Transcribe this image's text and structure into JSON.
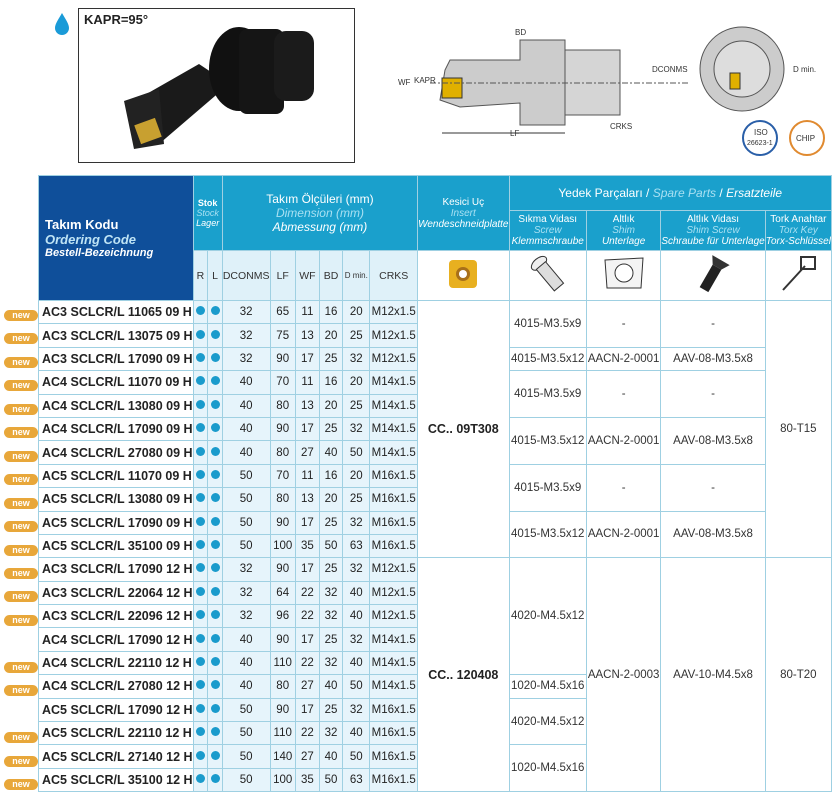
{
  "header": {
    "kapr_label": "KAPR=95°",
    "coolant_icon": "water-drop-icon",
    "drawing_labels": {
      "bd": "BD",
      "wf": "WF",
      "kapr": "KAPR",
      "lf": "LF",
      "dconms": "DCONMS",
      "crks": "CRKS",
      "dmin": "D min."
    },
    "badges": {
      "iso_line1": "ISO",
      "iso_line2": "26623-1",
      "chip": "CHIP"
    }
  },
  "table": {
    "code_header": {
      "tr": "Takım Kodu",
      "en": "Ordering Code",
      "de": "Bestell-Bezeichnung"
    },
    "stock_header": {
      "tr": "Stok",
      "en": "Stock",
      "de": "Lager"
    },
    "dim_header": {
      "tr": "Takım Ölçüleri (mm)",
      "en": "Dimension (mm)",
      "de": "Abmessung (mm)"
    },
    "insert_header": {
      "tr": "Kesici Uç",
      "en": "Insert",
      "de": "Wendeschneidplatte"
    },
    "spare_header": {
      "tr": "Yedek Parçaları",
      "en": "Spare Parts",
      "de": "Ersatzteile"
    },
    "spare_cols": [
      {
        "tr": "Sıkma Vidası",
        "en": "Screw",
        "de": "Klemmschraube",
        "icon": "screw-icon"
      },
      {
        "tr": "Altlık",
        "en": "Shim",
        "de": "Unterlage",
        "icon": "shim-icon"
      },
      {
        "tr": "Altlık Vidası",
        "en": "Shim Screw",
        "de": "Schraube für Unterlage",
        "icon": "shim-screw-icon"
      },
      {
        "tr": "Tork Anahtar",
        "en": "Torx Key",
        "de": "Torx-Schlüssel",
        "icon": "torx-key-icon"
      }
    ],
    "sub_cols": [
      "R",
      "L",
      "DCONMS",
      "LF",
      "WF",
      "BD",
      "D min.",
      "CRKS"
    ],
    "new_label": "new",
    "accent": "#1aa0cc",
    "header_dark": "#0f4f9a",
    "new_color": "#e8a73a",
    "rows": [
      {
        "new": true,
        "code": "AC3 SCLCR/L 11065 09 H",
        "r": true,
        "l": true,
        "d": [
          "32",
          "65",
          "11",
          "16",
          "20",
          "M12x1.5"
        ]
      },
      {
        "new": true,
        "code": "AC3 SCLCR/L 13075 09 H",
        "r": true,
        "l": true,
        "d": [
          "32",
          "75",
          "13",
          "20",
          "25",
          "M12x1.5"
        ]
      },
      {
        "new": true,
        "code": "AC3 SCLCR/L 17090 09 H",
        "r": true,
        "l": true,
        "d": [
          "32",
          "90",
          "17",
          "25",
          "32",
          "M12x1.5"
        ]
      },
      {
        "new": true,
        "code": "AC4 SCLCR/L 11070 09 H",
        "r": true,
        "l": true,
        "d": [
          "40",
          "70",
          "11",
          "16",
          "20",
          "M14x1.5"
        ]
      },
      {
        "new": true,
        "code": "AC4 SCLCR/L 13080 09 H",
        "r": true,
        "l": true,
        "d": [
          "40",
          "80",
          "13",
          "20",
          "25",
          "M14x1.5"
        ]
      },
      {
        "new": true,
        "code": "AC4 SCLCR/L 17090 09 H",
        "r": true,
        "l": true,
        "d": [
          "40",
          "90",
          "17",
          "25",
          "32",
          "M14x1.5"
        ]
      },
      {
        "new": true,
        "code": "AC4 SCLCR/L 27080 09 H",
        "r": true,
        "l": true,
        "d": [
          "40",
          "80",
          "27",
          "40",
          "50",
          "M14x1.5"
        ]
      },
      {
        "new": true,
        "code": "AC5 SCLCR/L 11070 09 H",
        "r": true,
        "l": true,
        "d": [
          "50",
          "70",
          "11",
          "16",
          "20",
          "M16x1.5"
        ]
      },
      {
        "new": true,
        "code": "AC5 SCLCR/L 13080 09 H",
        "r": true,
        "l": true,
        "d": [
          "50",
          "80",
          "13",
          "20",
          "25",
          "M16x1.5"
        ]
      },
      {
        "new": true,
        "code": "AC5 SCLCR/L 17090 09 H",
        "r": true,
        "l": true,
        "d": [
          "50",
          "90",
          "17",
          "25",
          "32",
          "M16x1.5"
        ]
      },
      {
        "new": true,
        "code": "AC5 SCLCR/L 35100 09 H",
        "r": true,
        "l": true,
        "d": [
          "50",
          "100",
          "35",
          "50",
          "63",
          "M16x1.5"
        ]
      },
      {
        "new": true,
        "code": "AC3 SCLCR/L 17090 12 H",
        "r": true,
        "l": true,
        "d": [
          "32",
          "90",
          "17",
          "25",
          "32",
          "M12x1.5"
        ]
      },
      {
        "new": true,
        "code": "AC3 SCLCR/L 22064 12 H",
        "r": true,
        "l": true,
        "d": [
          "32",
          "64",
          "22",
          "32",
          "40",
          "M12x1.5"
        ]
      },
      {
        "new": true,
        "code": "AC3 SCLCR/L 22096 12 H",
        "r": true,
        "l": true,
        "d": [
          "32",
          "96",
          "22",
          "32",
          "40",
          "M12x1.5"
        ]
      },
      {
        "new": false,
        "code": "AC4 SCLCR/L 17090 12 H",
        "r": true,
        "l": true,
        "d": [
          "40",
          "90",
          "17",
          "25",
          "32",
          "M14x1.5"
        ]
      },
      {
        "new": true,
        "code": "AC4 SCLCR/L 22110 12 H",
        "r": true,
        "l": true,
        "d": [
          "40",
          "110",
          "22",
          "32",
          "40",
          "M14x1.5"
        ]
      },
      {
        "new": true,
        "code": "AC4 SCLCR/L 27080 12 H",
        "r": true,
        "l": true,
        "d": [
          "40",
          "80",
          "27",
          "40",
          "50",
          "M14x1.5"
        ]
      },
      {
        "new": false,
        "code": "AC5 SCLCR/L 17090 12 H",
        "r": true,
        "l": true,
        "d": [
          "50",
          "90",
          "17",
          "25",
          "32",
          "M16x1.5"
        ]
      },
      {
        "new": true,
        "code": "AC5 SCLCR/L 22110 12 H",
        "r": true,
        "l": true,
        "d": [
          "50",
          "110",
          "22",
          "32",
          "40",
          "M16x1.5"
        ]
      },
      {
        "new": true,
        "code": "AC5 SCLCR/L 27140 12 H",
        "r": true,
        "l": true,
        "d": [
          "50",
          "140",
          "27",
          "40",
          "50",
          "M16x1.5"
        ]
      },
      {
        "new": true,
        "code": "AC5 SCLCR/L 35100 12 H",
        "r": true,
        "l": true,
        "d": [
          "50",
          "100",
          "35",
          "50",
          "63",
          "M16x1.5"
        ]
      }
    ],
    "inserts": [
      {
        "label": "CC.. 09T308",
        "rows": 11
      },
      {
        "label": "CC.. 120408",
        "rows": 10
      }
    ],
    "screws": [
      {
        "v": "4015-M3.5x9",
        "rows": 2
      },
      {
        "v": "4015-M3.5x12",
        "rows": 1
      },
      {
        "v": "4015-M3.5x9",
        "rows": 2
      },
      {
        "v": "4015-M3.5x12",
        "rows": 2
      },
      {
        "v": "4015-M3.5x9",
        "rows": 2
      },
      {
        "v": "4015-M3.5x12",
        "rows": 2
      },
      {
        "v": "4020-M4.5x12",
        "rows": 5
      },
      {
        "v": "1020-M4.5x16",
        "rows": 1
      },
      {
        "v": "4020-M4.5x12",
        "rows": 2
      },
      {
        "v": "1020-M4.5x16",
        "rows": 2
      }
    ],
    "shims": [
      {
        "v": "-",
        "rows": 2
      },
      {
        "v": "AACN-2-0001",
        "rows": 1
      },
      {
        "v": "-",
        "rows": 2
      },
      {
        "v": "AACN-2-0001",
        "rows": 2
      },
      {
        "v": "-",
        "rows": 2
      },
      {
        "v": "AACN-2-0001",
        "rows": 2
      },
      {
        "v": "AACN-2-0003",
        "rows": 10
      }
    ],
    "shim_screws": [
      {
        "v": "-",
        "rows": 2
      },
      {
        "v": "AAV-08-M3.5x8",
        "rows": 1
      },
      {
        "v": "-",
        "rows": 2
      },
      {
        "v": "AAV-08-M3.5x8",
        "rows": 2
      },
      {
        "v": "-",
        "rows": 2
      },
      {
        "v": "AAV-08-M3.5x8",
        "rows": 2
      },
      {
        "v": "AAV-10-M4.5x8",
        "rows": 10
      }
    ],
    "keys": [
      {
        "v": "80-T15",
        "rows": 11
      },
      {
        "v": "80-T20",
        "rows": 10
      }
    ]
  }
}
